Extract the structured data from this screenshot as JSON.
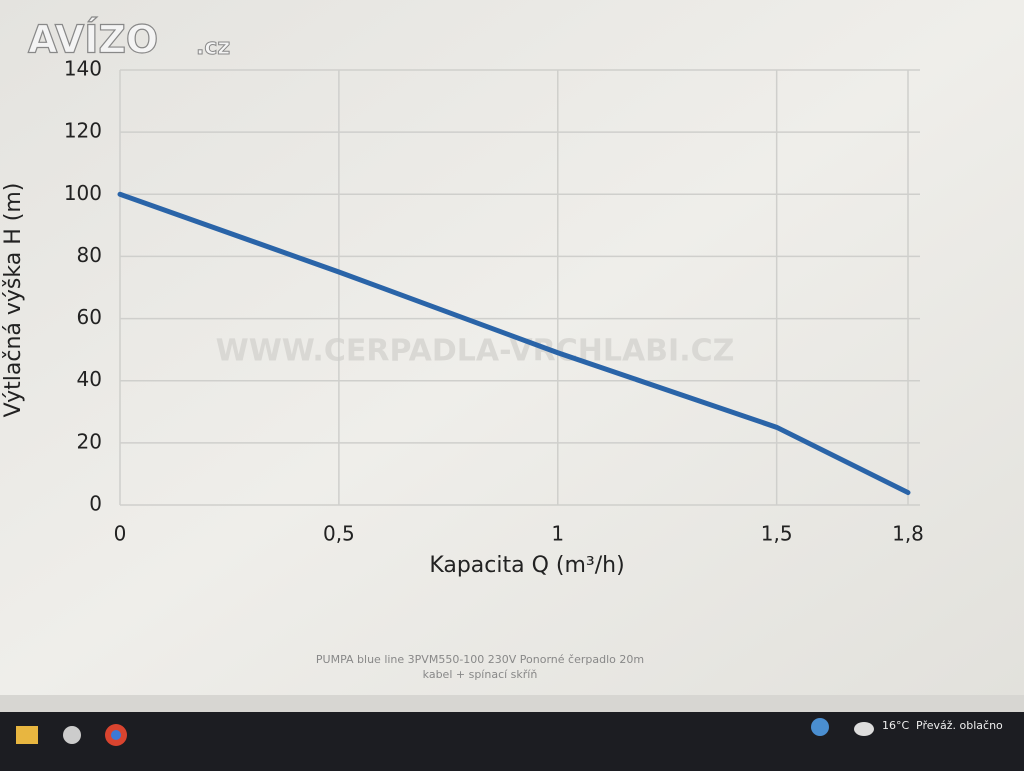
{
  "logo": {
    "brand": "AVÍZO",
    "suffix": ".cz"
  },
  "chart_data": {
    "type": "line",
    "xlabel": "Kapacita Q (m³/h)",
    "ylabel": "Výtlačná výška H (m)",
    "watermark": "WWW.CERPADLA-VRCHLABI.CZ",
    "x": [
      0,
      0.5,
      1,
      1.5,
      1.8
    ],
    "series": [
      {
        "color": "#2a64a8",
        "values": [
          100,
          75,
          49,
          25,
          4
        ]
      }
    ],
    "xlim": [
      0,
      1.8
    ],
    "xticks": [
      0,
      {
        "value": 0.5,
        "label": "0,5"
      },
      1,
      {
        "value": 1.5,
        "label": "1,5"
      },
      {
        "value": 1.8,
        "label": "1,8"
      }
    ],
    "ylim": [
      0,
      140
    ],
    "yticks": [
      0,
      20,
      40,
      60,
      80,
      100,
      120,
      140
    ],
    "grid": true
  },
  "caption": [
    "PUMPA blue line 3PVM550-100 230V Ponorné čerpadlo 20m",
    "kabel + spínací skříň"
  ],
  "taskbar": {
    "temperature": "16°C",
    "weather": "Převáž. oblačno"
  }
}
